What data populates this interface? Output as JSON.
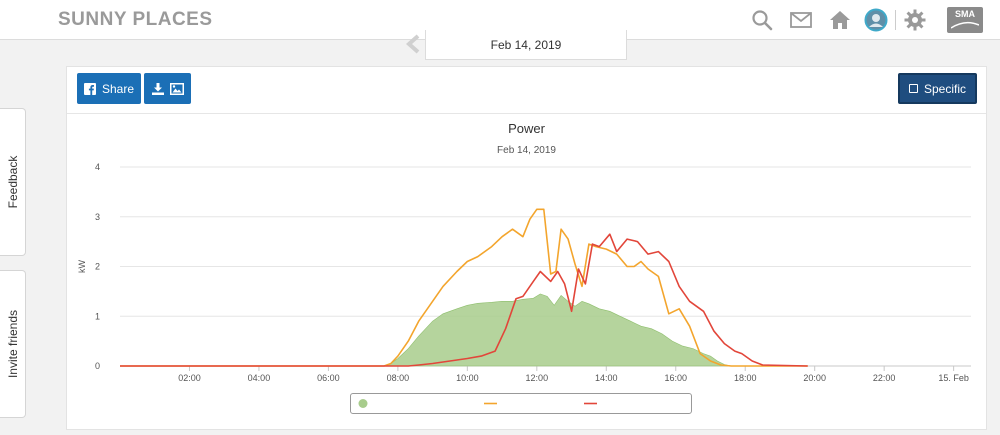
{
  "header": {
    "brand": "SUNNY PLACES",
    "icons": [
      "search-icon",
      "mail-icon",
      "home-icon",
      "avatar",
      "gear-icon",
      "sma-logo"
    ],
    "logo_text": "SMA"
  },
  "side_tabs": {
    "feedback": "Feedback",
    "invite": "Invite friends"
  },
  "date_nav": {
    "date": "Feb 14, 2019"
  },
  "toolbar": {
    "share_label": "Share",
    "specific_label": "Specific"
  },
  "chart_data": {
    "type": "area",
    "title": "Power",
    "subtitle": "Feb 14, 2019",
    "ylabel": "kW",
    "ylim": [
      0,
      4
    ],
    "yticks": [
      0,
      1,
      2,
      3,
      4
    ],
    "xlim": [
      0,
      24.5
    ],
    "xticks": [
      {
        "v": 2,
        "label": "02:00"
      },
      {
        "v": 4,
        "label": "04:00"
      },
      {
        "v": 6,
        "label": "06:00"
      },
      {
        "v": 8,
        "label": "08:00"
      },
      {
        "v": 10,
        "label": "10:00"
      },
      {
        "v": 12,
        "label": "12:00"
      },
      {
        "v": 14,
        "label": "14:00"
      },
      {
        "v": 16,
        "label": "16:00"
      },
      {
        "v": 18,
        "label": "18:00"
      },
      {
        "v": 20,
        "label": "20:00"
      },
      {
        "v": 22,
        "label": "22:00"
      },
      {
        "v": 24,
        "label": "15. Feb"
      }
    ],
    "grid": true,
    "legend": "bottom",
    "series": [
      {
        "type": "area",
        "color": "#a8cc8c",
        "x": [
          0,
          7.6,
          7.8,
          8.0,
          8.3,
          8.6,
          9.0,
          9.3,
          9.7,
          10.0,
          10.3,
          10.7,
          11.0,
          11.3,
          11.6,
          11.9,
          12.1,
          12.3,
          12.5,
          12.7,
          12.9,
          13.1,
          13.3,
          13.5,
          13.8,
          14.1,
          14.4,
          14.7,
          15.0,
          15.3,
          15.6,
          15.9,
          16.2,
          16.5,
          16.8,
          17.0,
          17.2,
          17.4,
          17.6,
          19.8
        ],
        "y": [
          0,
          0,
          0.05,
          0.15,
          0.35,
          0.6,
          0.9,
          1.05,
          1.15,
          1.22,
          1.26,
          1.28,
          1.3,
          1.3,
          1.34,
          1.36,
          1.45,
          1.4,
          1.22,
          1.42,
          1.3,
          1.2,
          1.3,
          1.25,
          1.15,
          1.1,
          1.0,
          0.9,
          0.8,
          0.75,
          0.65,
          0.5,
          0.4,
          0.35,
          0.25,
          0.2,
          0.1,
          0.03,
          0,
          0
        ]
      },
      {
        "type": "line",
        "color": "#f3a52d",
        "x": [
          0,
          7.6,
          7.8,
          8.0,
          8.3,
          8.6,
          9.0,
          9.3,
          9.7,
          10.0,
          10.3,
          10.7,
          11.0,
          11.3,
          11.6,
          11.8,
          12.0,
          12.2,
          12.4,
          12.55,
          12.7,
          12.9,
          13.1,
          13.3,
          13.5,
          13.7,
          14.0,
          14.3,
          14.6,
          14.8,
          15.0,
          15.2,
          15.5,
          15.8,
          16.1,
          16.4,
          16.7,
          17.0,
          17.3,
          17.6,
          19.8
        ],
        "y": [
          0,
          0,
          0.05,
          0.2,
          0.5,
          0.9,
          1.3,
          1.6,
          1.9,
          2.1,
          2.2,
          2.4,
          2.6,
          2.75,
          2.6,
          2.95,
          3.15,
          3.15,
          1.85,
          1.9,
          2.75,
          2.55,
          2.05,
          1.6,
          2.45,
          2.4,
          2.35,
          2.25,
          2.0,
          2.0,
          2.1,
          1.95,
          1.8,
          1.05,
          1.15,
          0.8,
          0.25,
          0.1,
          0.02,
          0,
          0
        ]
      },
      {
        "type": "line",
        "color": "#e2463a",
        "x": [
          0,
          8.3,
          8.6,
          9.0,
          9.5,
          10.0,
          10.4,
          10.8,
          11.1,
          11.4,
          11.6,
          11.9,
          12.1,
          12.4,
          12.6,
          12.8,
          13.0,
          13.2,
          13.4,
          13.6,
          13.8,
          14.1,
          14.3,
          14.6,
          14.9,
          15.2,
          15.5,
          15.8,
          16.1,
          16.4,
          16.8,
          17.1,
          17.4,
          17.7,
          17.9,
          18.2,
          18.5,
          19.8
        ],
        "y": [
          0,
          0,
          0.02,
          0.05,
          0.1,
          0.15,
          0.2,
          0.3,
          0.75,
          1.35,
          1.4,
          1.7,
          1.9,
          1.7,
          1.9,
          1.65,
          1.1,
          1.95,
          1.65,
          2.45,
          2.4,
          2.65,
          2.3,
          2.55,
          2.5,
          2.25,
          2.3,
          2.1,
          1.6,
          1.3,
          1.1,
          0.7,
          0.45,
          0.3,
          0.25,
          0.1,
          0.02,
          0
        ]
      }
    ]
  }
}
